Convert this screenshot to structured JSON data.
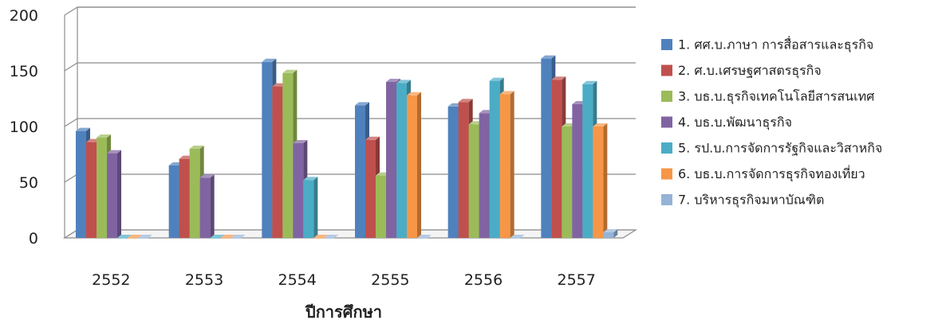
{
  "chart_data": {
    "type": "bar",
    "title": "",
    "xlabel": "ปีการศึกษา",
    "ylabel": "",
    "ylim": [
      0,
      200
    ],
    "yticks": [
      0,
      50,
      100,
      150,
      200
    ],
    "grid": true,
    "legend_position": "right",
    "categories": [
      "2552",
      "2553",
      "2554",
      "2555",
      "2556",
      "2557"
    ],
    "series": [
      {
        "name": "1. ศศ.บ.ภาษา การสื่อสารและธุรกิจ",
        "color": "#4F81BD",
        "values": [
          96,
          65,
          158,
          119,
          118,
          161
        ]
      },
      {
        "name": "2. ศ.บ.เศรษฐศาสตรธุรกิจ",
        "color": "#C0504D",
        "values": [
          86,
          71,
          136,
          88,
          122,
          142
        ]
      },
      {
        "name": "3. บธ.บ.ธุรกิจเทคโนโลยีสารสนเทศ",
        "color": "#9BBB59",
        "values": [
          90,
          80,
          148,
          56,
          102,
          100
        ]
      },
      {
        "name": "4. บธ.บ.พัฒนาธุรกิจ",
        "color": "#8064A2",
        "values": [
          76,
          54,
          85,
          140,
          112,
          120
        ]
      },
      {
        "name": "5. รป.บ.การจัดการรัฐกิจและวิสาหกิจ",
        "color": "#4BACC6",
        "values": [
          0,
          0,
          52,
          139,
          141,
          138
        ]
      },
      {
        "name": "6. บธ.บ.การจัดการธุรกิจทองเที่ยว",
        "color": "#F79646",
        "values": [
          0,
          0,
          0,
          128,
          129,
          100
        ]
      },
      {
        "name": "7. บริหารธุรกิจมหาบัณฑิต",
        "color": "#95B3D7",
        "values": [
          0,
          0,
          0,
          0,
          0,
          5
        ]
      }
    ]
  }
}
